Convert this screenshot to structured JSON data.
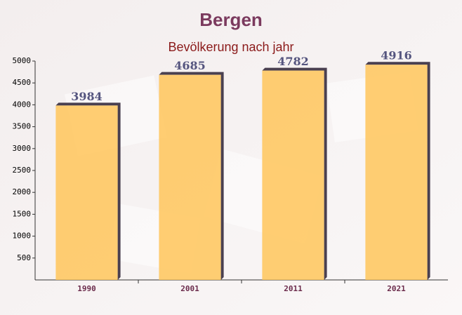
{
  "chart_data": {
    "type": "bar",
    "title": "Bergen",
    "subtitle": "Bevölkerung nach jahr",
    "categories": [
      "1990",
      "2001",
      "2011",
      "2021"
    ],
    "values": [
      3984,
      4685,
      4782,
      4916
    ],
    "color": "#ffc55a",
    "ylim": [
      0,
      5000
    ],
    "yticks": [
      500,
      1000,
      1500,
      2000,
      2500,
      3000,
      3500,
      4000,
      4500,
      5000
    ],
    "grid": false
  }
}
